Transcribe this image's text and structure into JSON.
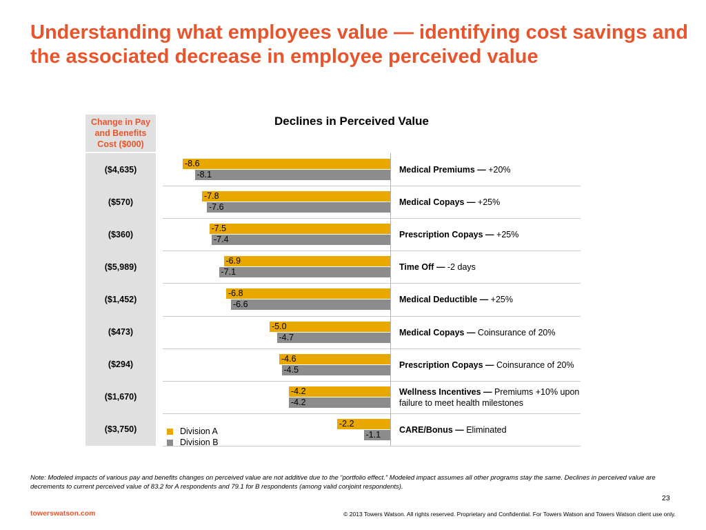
{
  "slide": {
    "title": "Understanding what employees value —  identifying cost savings and the associated decrease in employee perceived value",
    "column_header": "Change in Pay and Benefits Cost ($000)",
    "note": "Note: Modeled impacts of various pay and benefits changes on perceived value are not additive due to the “portfolio effect.” Modeled impact assumes all other programs stay the same. Declines in perceived value are decrements to current perceived value of 83.2 for A respondents and 79.1 for B respondents (among valid conjoint respondents).",
    "page_number": "23",
    "brand": "towerswatson.com",
    "copyright": "© 2013 Towers Watson. All rights reserved. Proprietary and Confidential. For Towers Watson and Towers Watson client use only."
  },
  "rows": [
    {
      "cost": "($4,635)",
      "change_bold": "Medical Premiums —",
      "change_text": " +20%"
    },
    {
      "cost": "($570)",
      "change_bold": "Medical Copays —",
      "change_text": " +25%"
    },
    {
      "cost": "($360)",
      "change_bold": "Prescription Copays —",
      "change_text": " +25%"
    },
    {
      "cost": "($5,989)",
      "change_bold": "Time Off —",
      "change_text": " -2 days"
    },
    {
      "cost": "($1,452)",
      "change_bold": "Medical Deductible —",
      "change_text": " +25%"
    },
    {
      "cost": "($473)",
      "change_bold": "Medical Copays —",
      "change_text": " Coinsurance of 20%"
    },
    {
      "cost": "($294)",
      "change_bold": "Prescription Copays —",
      "change_text": " Coinsurance of 20%"
    },
    {
      "cost": "($1,670)",
      "change_bold": "Wellness Incentives —",
      "change_text": " Premiums +10% upon failure to meet health milestones"
    },
    {
      "cost": "($3,750)",
      "change_bold": "CARE/Bonus —",
      "change_text": " Eliminated"
    }
  ],
  "chart_data": {
    "type": "bar",
    "orientation": "horizontal",
    "title": "Declines in Perceived Value",
    "categories": [
      "Medical Premiums — +20%",
      "Medical Copays — +25%",
      "Prescription Copays — +25%",
      "Time Off — -2 days",
      "Medical Deductible — +25%",
      "Medical Copays — Coinsurance of 20%",
      "Prescription Copays — Coinsurance of 20%",
      "Wellness Incentives — Premiums +10% upon failure to meet health milestones",
      "CARE/Bonus — Eliminated"
    ],
    "series": [
      {
        "name": "Division A",
        "color": "#e8a800",
        "values": [
          -8.6,
          -7.8,
          -7.5,
          -6.9,
          -6.8,
          -5.0,
          -4.6,
          -4.2,
          -2.2
        ]
      },
      {
        "name": "Division B",
        "color": "#8c8c8c",
        "values": [
          -8.1,
          -7.6,
          -7.4,
          -7.1,
          -6.6,
          -4.7,
          -4.5,
          -4.2,
          -1.1
        ]
      }
    ],
    "value_labels": {
      "Division A": [
        "-8.6",
        "-7.8",
        "-7.5",
        "-6.9",
        "-6.8",
        "-5.0",
        "-4.6",
        "-4.2",
        "-2.2"
      ],
      "Division B": [
        "-8.1",
        "-7.6",
        "-7.4",
        "-7.1",
        "-6.6",
        "-4.7",
        "-4.5",
        "-4.2",
        "-1.1"
      ]
    },
    "xlim": [
      -8.6,
      0
    ],
    "grid": false,
    "legend_position": "bottom-left"
  }
}
